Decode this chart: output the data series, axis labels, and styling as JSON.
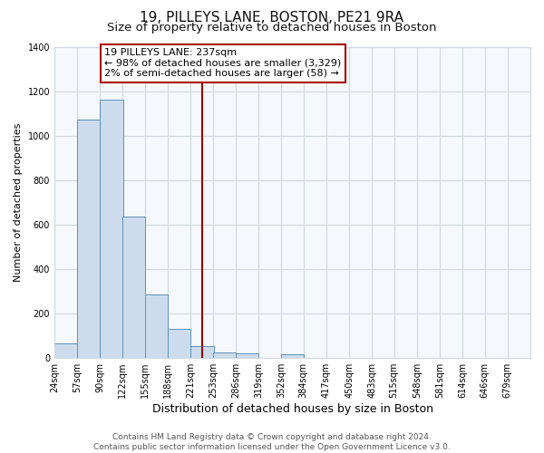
{
  "title": "19, PILLEYS LANE, BOSTON, PE21 9RA",
  "subtitle": "Size of property relative to detached houses in Boston",
  "xlabel": "Distribution of detached houses by size in Boston",
  "ylabel": "Number of detached properties",
  "footer_line1": "Contains HM Land Registry data © Crown copyright and database right 2024.",
  "footer_line2": "Contains public sector information licensed under the Open Government Licence v3.0.",
  "bin_labels": [
    "24sqm",
    "57sqm",
    "90sqm",
    "122sqm",
    "155sqm",
    "188sqm",
    "221sqm",
    "253sqm",
    "286sqm",
    "319sqm",
    "352sqm",
    "384sqm",
    "417sqm",
    "450sqm",
    "483sqm",
    "515sqm",
    "548sqm",
    "581sqm",
    "614sqm",
    "646sqm",
    "679sqm"
  ],
  "bar_values": [
    65,
    1070,
    1160,
    635,
    285,
    130,
    50,
    25,
    20,
    0,
    15,
    0,
    0,
    0,
    0,
    0,
    0,
    0,
    0,
    0,
    0
  ],
  "bar_color": "#ccdcec",
  "bar_edge_color": "#6090b8",
  "property_line_x": 237,
  "property_line_label": "19 PILLEYS LANE: 237sqm",
  "annotation_line1": "← 98% of detached houses are smaller (3,329)",
  "annotation_line2": "2% of semi-detached houses are larger (58) →",
  "annotation_box_facecolor": "#ffffff",
  "annotation_box_edgecolor": "#aa0000",
  "vline_color": "#990000",
  "ylim": [
    0,
    1400
  ],
  "bin_width": 33,
  "yticks": [
    0,
    200,
    400,
    600,
    800,
    1000,
    1200,
    1400
  ],
  "title_fontsize": 11,
  "subtitle_fontsize": 9.5,
  "xlabel_fontsize": 9,
  "ylabel_fontsize": 8,
  "tick_fontsize": 7,
  "annotation_fontsize": 8,
  "footer_fontsize": 6.5,
  "bg_color": "#ffffff",
  "plot_bg_color": "#f5f8fc",
  "grid_color": "#d0d8e0"
}
